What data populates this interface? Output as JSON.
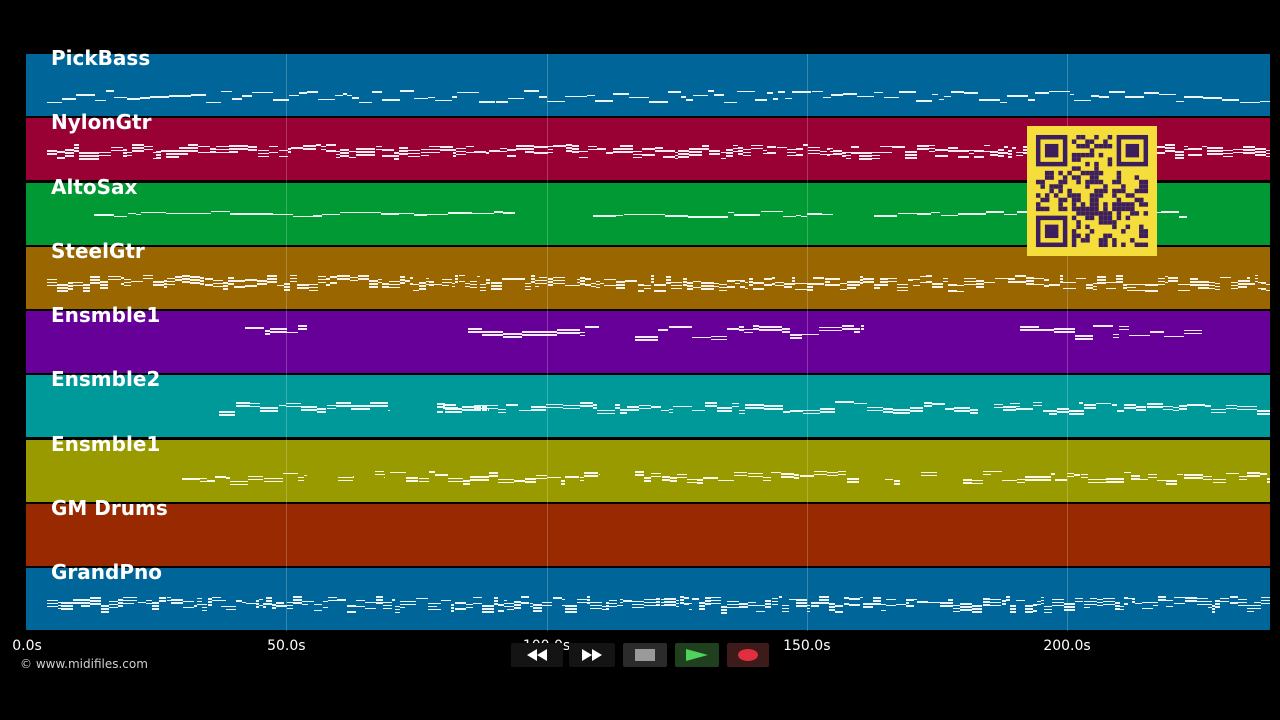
{
  "tracks": [
    {
      "name": "PickBass",
      "color": "#006699"
    },
    {
      "name": "NylonGtr",
      "color": "#990033"
    },
    {
      "name": "AltoSax",
      "color": "#009933"
    },
    {
      "name": "SteelGtr",
      "color": "#996600"
    },
    {
      "name": "Ensmble1",
      "color": "#660099"
    },
    {
      "name": "Ensmble2",
      "color": "#009999"
    },
    {
      "name": "Ensmble1",
      "color": "#999900"
    },
    {
      "name": "GM Drums",
      "color": "#992900"
    },
    {
      "name": "GrandPno",
      "color": "#006699"
    }
  ],
  "timeline": {
    "max_seconds": 239,
    "ticks": [
      "0.0s",
      "50.0s",
      "100.0s",
      "150.0s",
      "200.0s"
    ],
    "tick_values": [
      0,
      50,
      100,
      150,
      200
    ]
  },
  "credit": "© www.midifiles.com",
  "transport": {
    "rewind_icon": "rewind-icon",
    "fast_forward_icon": "fast-forward-icon",
    "stop_icon": "stop-icon",
    "play_icon": "play-icon",
    "record_icon": "record-icon"
  },
  "qr_code_icon": "qr-code-icon"
}
